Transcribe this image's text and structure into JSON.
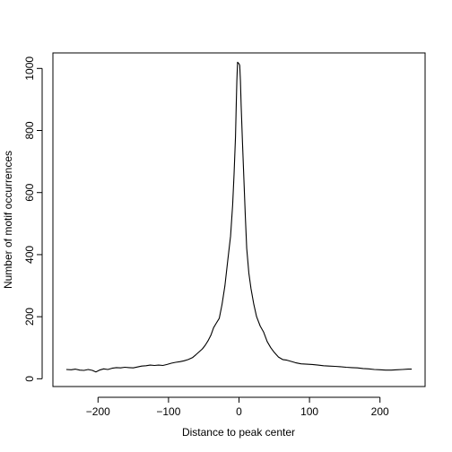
{
  "chart_data": {
    "type": "line",
    "xlabel": "Distance to peak center",
    "ylabel": "Number of motif occurrences",
    "xlim": [
      -264,
      264
    ],
    "ylim": [
      -25,
      1050
    ],
    "x_ticks": [
      -200,
      -100,
      0,
      100,
      200
    ],
    "y_ticks": [
      0,
      200,
      400,
      600,
      800,
      1000
    ],
    "grid": false,
    "legend": "none",
    "series": [
      {
        "color": "#000000",
        "points": [
          [
            -245,
            30
          ],
          [
            -238,
            29
          ],
          [
            -232,
            31
          ],
          [
            -226,
            28
          ],
          [
            -220,
            27
          ],
          [
            -214,
            30
          ],
          [
            -208,
            27
          ],
          [
            -203,
            22
          ],
          [
            -198,
            28
          ],
          [
            -192,
            32
          ],
          [
            -186,
            30
          ],
          [
            -180,
            34
          ],
          [
            -174,
            36
          ],
          [
            -168,
            35
          ],
          [
            -162,
            37
          ],
          [
            -156,
            36
          ],
          [
            -150,
            35
          ],
          [
            -144,
            38
          ],
          [
            -138,
            41
          ],
          [
            -132,
            42
          ],
          [
            -126,
            44
          ],
          [
            -120,
            43
          ],
          [
            -114,
            44
          ],
          [
            -108,
            43
          ],
          [
            -102,
            46
          ],
          [
            -96,
            50
          ],
          [
            -90,
            53
          ],
          [
            -84,
            55
          ],
          [
            -78,
            58
          ],
          [
            -72,
            62
          ],
          [
            -66,
            68
          ],
          [
            -61,
            78
          ],
          [
            -56,
            88
          ],
          [
            -52,
            96
          ],
          [
            -48,
            108
          ],
          [
            -44,
            122
          ],
          [
            -40,
            140
          ],
          [
            -36,
            165
          ],
          [
            -32,
            180
          ],
          [
            -28,
            195
          ],
          [
            -24,
            240
          ],
          [
            -20,
            300
          ],
          [
            -16,
            380
          ],
          [
            -12,
            460
          ],
          [
            -9,
            560
          ],
          [
            -7,
            660
          ],
          [
            -5,
            780
          ],
          [
            -4,
            880
          ],
          [
            -3,
            960
          ],
          [
            -2,
            1020
          ],
          [
            0,
            1015
          ],
          [
            1,
            1010
          ],
          [
            2,
            960
          ],
          [
            3,
            880
          ],
          [
            5,
            760
          ],
          [
            7,
            640
          ],
          [
            9,
            520
          ],
          [
            11,
            420
          ],
          [
            14,
            340
          ],
          [
            17,
            290
          ],
          [
            21,
            240
          ],
          [
            25,
            200
          ],
          [
            30,
            170
          ],
          [
            35,
            150
          ],
          [
            40,
            120
          ],
          [
            45,
            100
          ],
          [
            50,
            85
          ],
          [
            56,
            70
          ],
          [
            62,
            62
          ],
          [
            68,
            60
          ],
          [
            74,
            56
          ],
          [
            80,
            52
          ],
          [
            88,
            48
          ],
          [
            96,
            47
          ],
          [
            104,
            46
          ],
          [
            112,
            44
          ],
          [
            120,
            42
          ],
          [
            128,
            41
          ],
          [
            136,
            40
          ],
          [
            144,
            39
          ],
          [
            152,
            37
          ],
          [
            160,
            36
          ],
          [
            168,
            35
          ],
          [
            176,
            33
          ],
          [
            184,
            32
          ],
          [
            192,
            30
          ],
          [
            200,
            29
          ],
          [
            208,
            28
          ],
          [
            216,
            28
          ],
          [
            224,
            29
          ],
          [
            232,
            30
          ],
          [
            240,
            31
          ],
          [
            245,
            31
          ]
        ]
      }
    ]
  }
}
